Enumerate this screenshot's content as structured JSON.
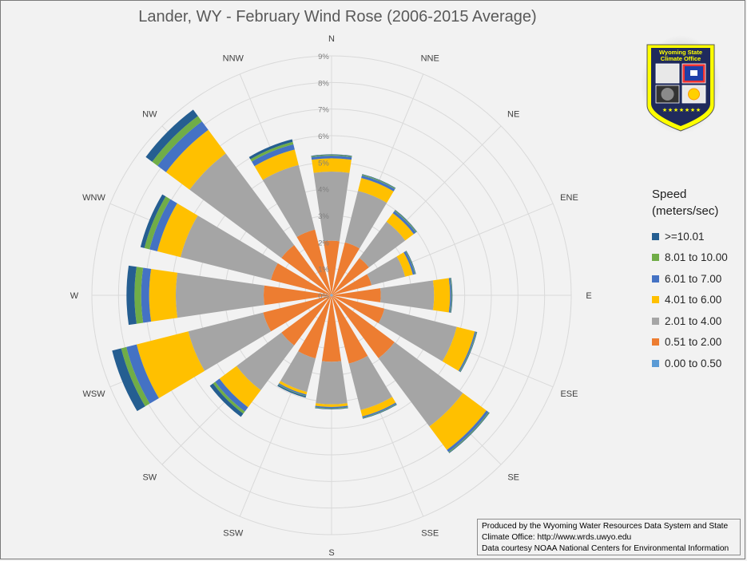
{
  "chart_data": {
    "type": "wind_rose",
    "title": "Lander, WY - February Wind Rose (2006-2015 Average)",
    "directions": [
      "N",
      "NNE",
      "NE",
      "ENE",
      "E",
      "ESE",
      "SE",
      "SSE",
      "S",
      "SSW",
      "SW",
      "WSW",
      "W",
      "WNW",
      "NW",
      "NNW"
    ],
    "radial_ticks": [
      "0%",
      "1%",
      "2%",
      "3%",
      "4%",
      "5%",
      "6%",
      "7%",
      "8%",
      "9%"
    ],
    "radial_range": [
      0,
      9
    ],
    "stacked": true,
    "legend_title": "Speed\n(meters/sec)",
    "legend_placement": "right",
    "series": [
      {
        "name": "0.00 to 0.50",
        "color": "#5b9bd5",
        "values": [
          0.05,
          0.05,
          0.05,
          0.05,
          0.05,
          0.05,
          0.05,
          0.05,
          0.05,
          0.05,
          0.05,
          0.05,
          0.05,
          0.05,
          0.05,
          0.05
        ]
      },
      {
        "name": "0.51 to 2.00",
        "color": "#ed7d31",
        "values": [
          2.0,
          2.0,
          1.7,
          1.5,
          1.8,
          2.0,
          2.9,
          2.6,
          2.45,
          2.4,
          2.3,
          2.6,
          2.5,
          2.3,
          2.3,
          2.5
        ]
      },
      {
        "name": "2.01 to 4.00",
        "color": "#a5a5a5",
        "values": [
          2.6,
          2.0,
          1.7,
          1.3,
          2.0,
          2.8,
          3.2,
          1.8,
          1.6,
          1.3,
          2.1,
          2.9,
          3.3,
          3.5,
          4.3,
          2.5
        ]
      },
      {
        "name": "4.01 to 6.00",
        "color": "#ffc000",
        "values": [
          0.5,
          0.5,
          0.4,
          0.3,
          0.6,
          0.7,
          1.1,
          0.25,
          0.1,
          0.1,
          0.8,
          2.0,
          1.0,
          0.9,
          1.1,
          0.6
        ]
      },
      {
        "name": "6.01 to 7.00",
        "color": "#4472c4",
        "values": [
          0.1,
          0.1,
          0.1,
          0.08,
          0.05,
          0.05,
          0.1,
          0.05,
          0.05,
          0.05,
          0.2,
          0.4,
          0.3,
          0.3,
          0.4,
          0.2
        ]
      },
      {
        "name": "8.01 to 10.00",
        "color": "#70ad47",
        "values": [
          0.03,
          0.03,
          0.03,
          0.02,
          0.02,
          0.02,
          0.03,
          0.02,
          0.02,
          0.02,
          0.1,
          0.2,
          0.25,
          0.2,
          0.25,
          0.1
        ]
      },
      {
        "name": ">=10.01",
        "color": "#255e91",
        "values": [
          0.02,
          0.02,
          0.02,
          0.02,
          0.02,
          0.02,
          0.02,
          0.02,
          0.02,
          0.05,
          0.15,
          0.35,
          0.3,
          0.15,
          0.3,
          0.1
        ]
      }
    ],
    "grid": true
  },
  "credits": [
    "Produced by the Wyoming Water Resources Data System and State",
    "Climate Office: http://www.wrds.uwyo.edu",
    "Data courtesy NOAA National Centers for Environmental Information"
  ],
  "logo": {
    "text_line1": "Wyoming State",
    "text_line2": "Climate Office"
  },
  "colors": {
    "background": "#f2f2f2",
    "grid": "#d9d9d9",
    "shield_outer": "#ffff00",
    "shield_inner": "#1f2a5c"
  }
}
